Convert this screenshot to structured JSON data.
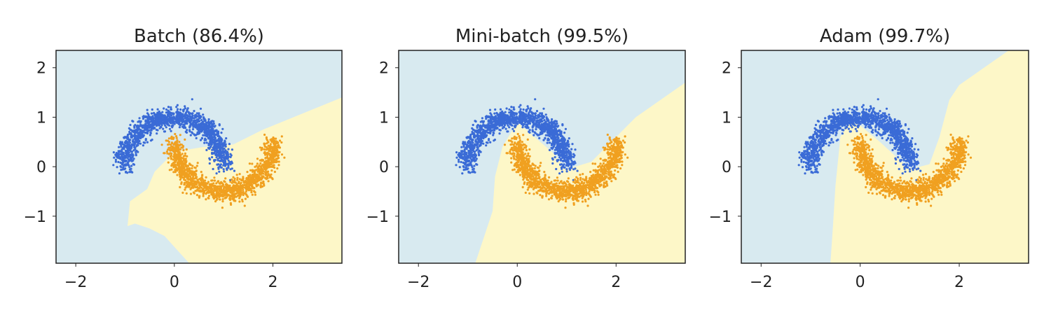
{
  "figure": {
    "background": "#ffffff",
    "region_colors": {
      "class0": "#d8eaf0",
      "class1": "#fdf7c8"
    },
    "point_colors": {
      "class0": "#3a6bd6",
      "class1": "#f0a020"
    },
    "axes_color": "#222222"
  },
  "chart_data": [
    {
      "type": "scatter",
      "title": "Batch (86.4%)",
      "xlabel": "",
      "ylabel": "",
      "xlim": [
        -2.4,
        3.4
      ],
      "ylim": [
        -1.95,
        2.35
      ],
      "xticks": [
        -2,
        0,
        2
      ],
      "xtick_labels": [
        "−2",
        "0",
        "2"
      ],
      "yticks": [
        2,
        1,
        0,
        -1
      ],
      "ytick_labels": [
        "2",
        "1",
        "0",
        "−1"
      ],
      "grid": false,
      "series": [
        {
          "class": 0,
          "color": "#3a6bd6",
          "moon_center": [
            0,
            0
          ],
          "radius": 1.0,
          "arc": "upper",
          "noise": 0.1
        },
        {
          "class": 1,
          "color": "#f0a020",
          "moon_center": [
            1,
            0.5
          ],
          "radius": 1.0,
          "arc": "lower",
          "noise": 0.1
        }
      ],
      "decision_region_class1": [
        [
          3.4,
          1.4
        ],
        [
          1.8,
          0.75
        ],
        [
          1.2,
          0.45
        ],
        [
          0.6,
          0.4
        ],
        [
          0.0,
          0.3
        ],
        [
          -0.4,
          -0.1
        ],
        [
          -0.55,
          -0.45
        ],
        [
          -0.9,
          -0.7
        ],
        [
          -0.95,
          -1.2
        ],
        [
          -0.8,
          -1.15
        ],
        [
          -0.5,
          -1.25
        ],
        [
          -0.2,
          -1.4
        ],
        [
          0.3,
          -1.95
        ],
        [
          3.4,
          -1.95
        ]
      ]
    },
    {
      "type": "scatter",
      "title": "Mini-batch (99.5%)",
      "xlabel": "",
      "ylabel": "",
      "xlim": [
        -2.4,
        3.4
      ],
      "ylim": [
        -1.95,
        2.35
      ],
      "xticks": [
        -2,
        0,
        2
      ],
      "xtick_labels": [
        "−2",
        "0",
        "2"
      ],
      "yticks": [
        2,
        1,
        0,
        -1
      ],
      "ytick_labels": [
        "2",
        "1",
        "0",
        "−1"
      ],
      "grid": false,
      "series": [
        {
          "class": 0,
          "color": "#3a6bd6",
          "moon_center": [
            0,
            0
          ],
          "radius": 1.0,
          "arc": "upper",
          "noise": 0.1
        },
        {
          "class": 1,
          "color": "#f0a020",
          "moon_center": [
            1,
            0.5
          ],
          "radius": 1.0,
          "arc": "lower",
          "noise": 0.1
        }
      ],
      "decision_region_class1": [
        [
          3.4,
          1.7
        ],
        [
          2.4,
          1.0
        ],
        [
          1.5,
          0.1
        ],
        [
          1.0,
          -0.05
        ],
        [
          0.7,
          0.3
        ],
        [
          0.0,
          0.9
        ],
        [
          -0.3,
          0.4
        ],
        [
          -0.45,
          -0.2
        ],
        [
          -0.5,
          -0.9
        ],
        [
          -0.7,
          -1.5
        ],
        [
          -0.85,
          -1.95
        ],
        [
          3.4,
          -1.95
        ]
      ]
    },
    {
      "type": "scatter",
      "title": "Adam (99.7%)",
      "xlabel": "",
      "ylabel": "",
      "xlim": [
        -2.4,
        3.4
      ],
      "ylim": [
        -1.95,
        2.35
      ],
      "xticks": [
        -2,
        0,
        2
      ],
      "xtick_labels": [
        "−2",
        "0",
        "2"
      ],
      "yticks": [
        2,
        1,
        0,
        -1
      ],
      "ytick_labels": [
        "2",
        "1",
        "0",
        "−1"
      ],
      "grid": false,
      "series": [
        {
          "class": 0,
          "color": "#3a6bd6",
          "moon_center": [
            0,
            0
          ],
          "radius": 1.0,
          "arc": "upper",
          "noise": 0.1
        },
        {
          "class": 1,
          "color": "#f0a020",
          "moon_center": [
            1,
            0.5
          ],
          "radius": 1.0,
          "arc": "lower",
          "noise": 0.1
        }
      ],
      "decision_region_class1": [
        [
          3.4,
          2.35
        ],
        [
          3.0,
          2.35
        ],
        [
          2.0,
          1.65
        ],
        [
          1.8,
          1.35
        ],
        [
          1.6,
          0.6
        ],
        [
          1.4,
          0.05
        ],
        [
          1.0,
          -0.05
        ],
        [
          0.4,
          0.5
        ],
        [
          -0.2,
          1.0
        ],
        [
          -0.4,
          0.6
        ],
        [
          -0.5,
          -0.4
        ],
        [
          -0.55,
          -1.2
        ],
        [
          -0.6,
          -1.95
        ],
        [
          3.4,
          -1.95
        ]
      ]
    }
  ]
}
